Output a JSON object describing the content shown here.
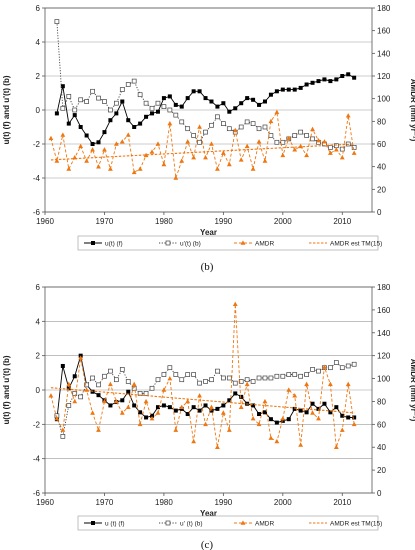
{
  "chart_data": [
    {
      "type": "line",
      "panel": "b",
      "caption": "(b)",
      "xlabel": "Year",
      "ylabel": "u(t) (f) and u'(t) (b)",
      "y2label": "AMDR (mm yr⁻¹)",
      "xlim": [
        1960,
        2015
      ],
      "ylim": [
        -6,
        6
      ],
      "y2lim": [
        0,
        180
      ],
      "xticks": [
        1960,
        1970,
        1980,
        1990,
        2000,
        2010
      ],
      "yticks": [
        -6,
        -4,
        -2,
        0,
        2,
        4,
        6
      ],
      "y2ticks": [
        0,
        20,
        40,
        60,
        80,
        100,
        120,
        140,
        160,
        180
      ],
      "grid": "horizontal",
      "legend_position": "bottom",
      "series": [
        {
          "name": "u(t) (f)",
          "axis": "left",
          "color": "#000000",
          "style": "solid-filled-square",
          "x": [
            1962,
            1963,
            1964,
            1965,
            1966,
            1967,
            1968,
            1969,
            1970,
            1971,
            1972,
            1973,
            1974,
            1975,
            1976,
            1977,
            1978,
            1979,
            1980,
            1981,
            1982,
            1983,
            1984,
            1985,
            1986,
            1987,
            1988,
            1989,
            1990,
            1991,
            1992,
            1993,
            1994,
            1995,
            1996,
            1997,
            1998,
            1999,
            2000,
            2001,
            2002,
            2003,
            2004,
            2005,
            2006,
            2007,
            2008,
            2009,
            2010,
            2011,
            2012
          ],
          "y": [
            -0.2,
            1.4,
            -0.8,
            -0.3,
            -1.0,
            -1.5,
            -2.0,
            -1.9,
            -1.3,
            -0.6,
            -0.2,
            0.5,
            -0.6,
            -1.0,
            -0.8,
            -0.4,
            -0.2,
            -0.1,
            0.7,
            0.8,
            0.3,
            0.2,
            0.7,
            1.1,
            1.1,
            0.7,
            0.5,
            0.2,
            0.4,
            -0.1,
            0.1,
            0.4,
            0.7,
            0.6,
            0.3,
            0.5,
            0.9,
            1.1,
            1.2,
            1.2,
            1.2,
            1.3,
            1.5,
            1.6,
            1.7,
            1.8,
            1.7,
            1.8,
            2.0,
            2.1,
            1.9
          ]
        },
        {
          "name": "u'(t) (b)",
          "axis": "left",
          "color": "#444444",
          "style": "dotted-open-square",
          "x": [
            1962,
            1963,
            1964,
            1965,
            1966,
            1967,
            1968,
            1969,
            1970,
            1971,
            1972,
            1973,
            1974,
            1975,
            1976,
            1977,
            1978,
            1979,
            1980,
            1981,
            1982,
            1983,
            1984,
            1985,
            1986,
            1987,
            1988,
            1989,
            1990,
            1991,
            1992,
            1993,
            1994,
            1995,
            1996,
            1997,
            1998,
            1999,
            2000,
            2001,
            2002,
            2003,
            2004,
            2005,
            2006,
            2007,
            2008,
            2009,
            2010,
            2011,
            2012
          ],
          "y": [
            5.2,
            0.1,
            0.8,
            0.0,
            0.6,
            0.5,
            1.1,
            0.7,
            0.5,
            0.0,
            0.4,
            1.2,
            1.5,
            1.7,
            0.9,
            0.4,
            0.1,
            0.4,
            0.2,
            0.0,
            -0.3,
            -0.7,
            -1.1,
            -1.5,
            -1.9,
            -1.3,
            -0.9,
            -0.4,
            -0.8,
            -1.1,
            -1.3,
            -1.0,
            -0.7,
            -0.8,
            -1.1,
            -1.0,
            -1.5,
            -1.9,
            -1.9,
            -1.7,
            -1.5,
            -1.3,
            -1.5,
            -1.7,
            -1.9,
            -2.0,
            -2.2,
            -2.1,
            -2.3,
            -2.0,
            -2.2
          ]
        },
        {
          "name": "AMDR",
          "axis": "right",
          "color": "#ee7711",
          "style": "dashed-filled-triangle",
          "x": [
            1961,
            1962,
            1963,
            1964,
            1965,
            1966,
            1967,
            1968,
            1969,
            1970,
            1971,
            1972,
            1973,
            1974,
            1975,
            1976,
            1977,
            1978,
            1979,
            1980,
            1981,
            1982,
            1983,
            1984,
            1985,
            1986,
            1987,
            1988,
            1989,
            1990,
            1991,
            1992,
            1993,
            1994,
            1995,
            1996,
            1997,
            1998,
            1999,
            2000,
            2001,
            2002,
            2003,
            2004,
            2005,
            2006,
            2007,
            2008,
            2009,
            2010,
            2011,
            2012
          ],
          "y": [
            65,
            45,
            68,
            38,
            48,
            58,
            45,
            55,
            40,
            55,
            38,
            60,
            62,
            68,
            35,
            38,
            50,
            53,
            60,
            42,
            78,
            30,
            45,
            62,
            48,
            75,
            48,
            60,
            38,
            52,
            42,
            72,
            46,
            58,
            38,
            62,
            45,
            80,
            88,
            50,
            65,
            55,
            58,
            50,
            73,
            63,
            62,
            52,
            55,
            48,
            85,
            52
          ]
        },
        {
          "name": "AMDR est TM(15)",
          "axis": "right",
          "color": "#ee7711",
          "style": "dashed-trend",
          "x": [
            1961,
            2012
          ],
          "y": [
            46,
            60
          ]
        }
      ]
    },
    {
      "type": "line",
      "panel": "c",
      "caption": "(c)",
      "xlabel": "Year",
      "ylabel": "u(t) (f) and u'(t) (b)",
      "y2label": "AMDR (mm yr⁻¹)",
      "xlim": [
        1960,
        2015
      ],
      "ylim": [
        -6,
        6
      ],
      "y2lim": [
        0,
        180
      ],
      "xticks": [
        1960,
        1970,
        1980,
        1990,
        2000,
        2010
      ],
      "yticks": [
        -6,
        -4,
        -2,
        0,
        2,
        4,
        6
      ],
      "y2ticks": [
        0,
        20,
        40,
        60,
        80,
        100,
        120,
        140,
        160,
        180
      ],
      "grid": "horizontal",
      "legend_position": "bottom",
      "series": [
        {
          "name": "u (t) (f)",
          "axis": "left",
          "color": "#000000",
          "style": "solid-filled-square",
          "x": [
            1962,
            1963,
            1964,
            1965,
            1966,
            1967,
            1968,
            1969,
            1970,
            1971,
            1972,
            1973,
            1974,
            1975,
            1976,
            1977,
            1978,
            1979,
            1980,
            1981,
            1982,
            1983,
            1984,
            1985,
            1986,
            1987,
            1988,
            1989,
            1990,
            1991,
            1992,
            1993,
            1994,
            1995,
            1996,
            1997,
            1998,
            1999,
            2000,
            2001,
            2002,
            2003,
            2004,
            2005,
            2006,
            2007,
            2008,
            2009,
            2010,
            2011,
            2012
          ],
          "y": [
            -1.7,
            1.4,
            0.1,
            0.8,
            2.0,
            0.3,
            -0.1,
            -0.3,
            -0.6,
            -0.9,
            -0.7,
            -0.6,
            -0.1,
            -0.9,
            -1.3,
            -1.6,
            -1.5,
            -1.0,
            -0.9,
            -1.0,
            -1.2,
            -1.1,
            -1.4,
            -1.0,
            -1.2,
            -0.9,
            -1.2,
            -1.1,
            -0.9,
            -0.6,
            -0.2,
            -0.4,
            -0.8,
            -0.9,
            -1.4,
            -1.3,
            -1.7,
            -1.9,
            -1.8,
            -1.7,
            -1.1,
            -1.2,
            -1.3,
            -0.8,
            -1.1,
            -0.8,
            -1.3,
            -1.0,
            -1.5,
            -1.6,
            -1.6
          ]
        },
        {
          "name": "u' (t) (b)",
          "axis": "left",
          "color": "#444444",
          "style": "dotted-open-square",
          "x": [
            1962,
            1963,
            1964,
            1965,
            1966,
            1967,
            1968,
            1969,
            1970,
            1971,
            1972,
            1973,
            1974,
            1975,
            1976,
            1977,
            1978,
            1979,
            1980,
            1981,
            1982,
            1983,
            1984,
            1985,
            1986,
            1987,
            1988,
            1989,
            1990,
            1991,
            1992,
            1993,
            1994,
            1995,
            1996,
            1997,
            1998,
            1999,
            2000,
            2001,
            2002,
            2003,
            2004,
            2005,
            2006,
            2007,
            2008,
            2009,
            2010,
            2011,
            2012
          ],
          "y": [
            -1.5,
            -2.7,
            -0.9,
            -0.2,
            -0.4,
            0.3,
            0.7,
            0.3,
            0.8,
            1.1,
            0.6,
            1.2,
            0.5,
            0.1,
            -0.2,
            -0.2,
            0.1,
            0.6,
            0.9,
            1.3,
            0.9,
            0.6,
            0.9,
            0.9,
            0.4,
            0.5,
            0.6,
            1.1,
            0.7,
            0.7,
            0.4,
            0.5,
            0.6,
            0.5,
            0.7,
            0.7,
            0.7,
            0.8,
            0.8,
            0.9,
            0.9,
            0.8,
            0.9,
            1.2,
            1.1,
            1.3,
            1.3,
            1.6,
            1.3,
            1.4,
            1.5
          ]
        },
        {
          "name": "AMDR",
          "axis": "right",
          "color": "#ee7711",
          "style": "dashed-filled-triangle",
          "x": [
            1961,
            1962,
            1963,
            1964,
            1965,
            1966,
            1967,
            1968,
            1969,
            1970,
            1971,
            1972,
            1973,
            1974,
            1975,
            1976,
            1977,
            1978,
            1979,
            1980,
            1981,
            1982,
            1983,
            1984,
            1985,
            1986,
            1987,
            1988,
            1989,
            1990,
            1991,
            1992,
            1993,
            1994,
            1995,
            1996,
            1997,
            1998,
            1999,
            2000,
            2001,
            2002,
            2003,
            2004,
            2005,
            2006,
            2007,
            2008,
            2009,
            2010,
            2011,
            2012
          ],
          "y": [
            85,
            65,
            55,
            95,
            80,
            118,
            90,
            70,
            55,
            80,
            95,
            80,
            70,
            75,
            95,
            60,
            80,
            65,
            70,
            90,
            100,
            55,
            75,
            80,
            45,
            85,
            60,
            75,
            40,
            70,
            55,
            165,
            75,
            95,
            65,
            60,
            80,
            48,
            45,
            65,
            90,
            85,
            42,
            95,
            70,
            65,
            110,
            95,
            40,
            55,
            95,
            60
          ]
        },
        {
          "name": "AMDR est TM(15)",
          "axis": "right",
          "color": "#ee7711",
          "style": "dashed-trend",
          "x": [
            1961,
            2012
          ],
          "y": [
            92,
            70
          ]
        }
      ]
    }
  ]
}
